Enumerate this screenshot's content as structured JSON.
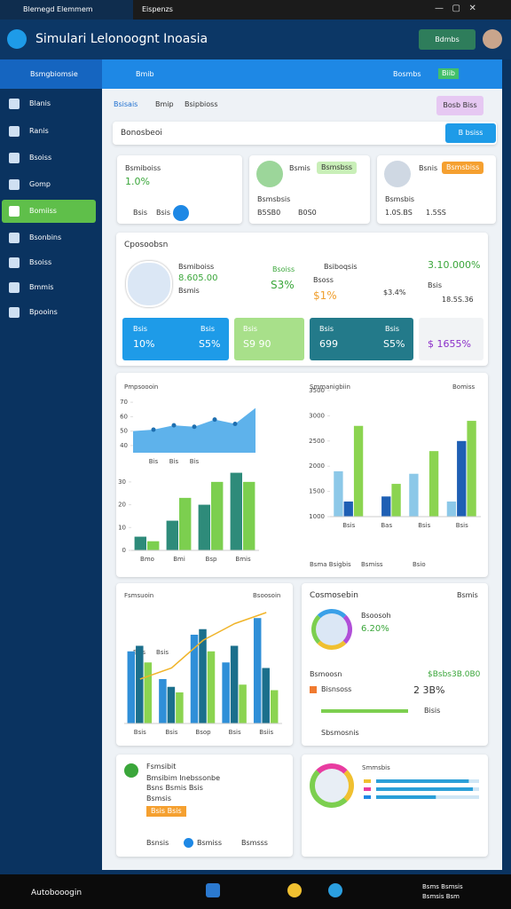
{
  "browser": {
    "tabs": [
      "Blemegd Elemmem",
      "Eispenzs"
    ]
  },
  "header": {
    "title": "Simulari Lelonoognt Inoasia",
    "button": "Bdmbs"
  },
  "sidebar": {
    "title": "Bsmgbiomsie",
    "items": [
      "Blanis",
      "Ranis",
      "Bsoiss",
      "Gomp",
      "Bomiiss",
      "Bsonbins",
      "Bsoiss",
      "Bmmis",
      "Bpooins"
    ],
    "active": 4
  },
  "topbar": {
    "items": [
      "Bmib",
      "Bosmbs",
      "Biib"
    ]
  },
  "tabs": {
    "items": [
      "Bsisais",
      "Bmip",
      "Bsipbioss"
    ],
    "button": "Bosb Biss"
  },
  "search": {
    "label": "Bonosbeoi",
    "button": "B bsiss"
  },
  "cards": [
    {
      "label": "Bsmiboiss",
      "value": "1.0%",
      "footer": [
        "Bsis",
        "Bsis"
      ]
    },
    {
      "label": "Bsmis",
      "badge": "Bsmsbss",
      "name": "Bsmsbsis",
      "footer": [
        "B5SB0",
        "B0S0"
      ]
    },
    {
      "label": "Bsnis",
      "badge": "Bsmsbiss",
      "name": "Bsmsbis",
      "footer": [
        "1.0S.BS",
        "1.5SS"
      ]
    }
  ],
  "overview": {
    "title": "Cposoobsn",
    "stats": [
      {
        "label": "Bsmiboiss",
        "value": "8.605.00",
        "note": "Bsmis"
      },
      {
        "label": "Bsoiss",
        "value": "S3%"
      },
      {
        "label": "Bsiboqsis",
        "note": "Bsoss",
        "value": "$1%",
        "extra": "$3.4%"
      },
      {
        "value": "3.10.000%",
        "label": "Bsis",
        "extra": "18.5S.36"
      }
    ],
    "tiles": [
      {
        "label": "Bsis",
        "value": "10%",
        "label2": "Bsis",
        "value2": "S5%"
      },
      {
        "label": "Bsis",
        "value": "S9 90"
      },
      {
        "label": "Bsis",
        "value": "699",
        "label2": "Bsis",
        "value2": "S5%"
      },
      {
        "value": "$ 1655%"
      }
    ]
  },
  "chart_data": [
    {
      "type": "area",
      "title": "Pmpsoooin",
      "categories": [
        null,
        "Bis",
        "Bis",
        "Bis",
        null,
        null,
        null
      ],
      "values": [
        50,
        51,
        54,
        53,
        58,
        55,
        66
      ],
      "color": "#42a5e8",
      "ylim": [
        35,
        75
      ],
      "yticks": [
        40,
        50,
        60,
        70
      ]
    },
    {
      "type": "bar",
      "categories": [
        "Bmo",
        "Bmi",
        "Bsp",
        "Bmis"
      ],
      "ylim": [
        0,
        35
      ],
      "yticks": [
        0,
        10,
        20,
        30
      ],
      "series": [
        {
          "color": "#2e8b7a",
          "values": [
            6,
            13,
            20,
            34
          ]
        },
        {
          "color": "#7ccf4f",
          "values": [
            4,
            23,
            30,
            30
          ]
        }
      ]
    },
    {
      "type": "bar",
      "title": "Smmanigbiin",
      "subtitle": "Bomiss",
      "categories": [
        "Bsis",
        "Bas",
        "Bsis",
        "Bsis"
      ],
      "ylim": [
        1000,
        3500
      ],
      "yticks": [
        1000,
        1500,
        2000,
        2500,
        3000,
        3500
      ],
      "series": [
        {
          "name": "Bsma Bsigbis",
          "color": "#8cc8e8",
          "values": [
            1900,
            null,
            1850,
            1300
          ]
        },
        {
          "name": "Bsmiss",
          "color": "#1e5fb4",
          "values": [
            1300,
            1400,
            null,
            2500
          ]
        },
        {
          "name": "Bsio",
          "color": "#8bd450",
          "values": [
            2800,
            1650,
            2300,
            2900
          ]
        }
      ]
    },
    {
      "type": "combo",
      "title": "Fsmsuoin",
      "subtitle": "Bsoosoin",
      "annotations": [
        "Bsis",
        "Bsis"
      ],
      "categories": [
        "Bsis",
        "Bsis",
        "Bsop",
        "Bsis",
        "Bsiis"
      ],
      "ylim": [
        0,
        100
      ],
      "series": [
        {
          "color": "#2f8fd8",
          "values": [
            65,
            40,
            80,
            55,
            95
          ]
        },
        {
          "color": "#1b6f8c",
          "values": [
            70,
            33,
            85,
            70,
            50
          ]
        },
        {
          "color": "#8bd450",
          "values": [
            55,
            28,
            65,
            35,
            30
          ]
        },
        {
          "type": "line",
          "color": "#f0b429",
          "values": [
            40,
            50,
            75,
            90,
            100
          ]
        }
      ]
    },
    {
      "type": "hbar",
      "title": "Smmsbis",
      "xlim": [
        0,
        100
      ],
      "values": [
        90,
        94,
        58
      ],
      "color": "#2a9fd8"
    }
  ],
  "profile": {
    "title": "Cosmosebin",
    "subtitle": "Bsmis",
    "name": "Bsoosoh",
    "value": "6.20%",
    "rows": [
      {
        "label": "Bsmoosn",
        "value": "$Bsbs3B.0B0"
      },
      {
        "label": "Bisnsoss",
        "value": "2 3B%"
      },
      {
        "label": "Bisis"
      },
      {
        "label": "Sbsmosnis"
      }
    ]
  },
  "task": {
    "title": "Fsmsibit",
    "lines": [
      "Bmsibim Inebssonbe",
      "Bsns Bsmis Bsis",
      "Bsmsis"
    ],
    "badge": "Bsis Bsis",
    "actions": [
      "Bsnsis",
      "Bsmiss",
      "Bsmsss"
    ]
  },
  "taskbar": {
    "search": "Autobooogin",
    "tray": [
      "Bsms Bsmsis",
      "Bsmsis Bsm"
    ]
  }
}
